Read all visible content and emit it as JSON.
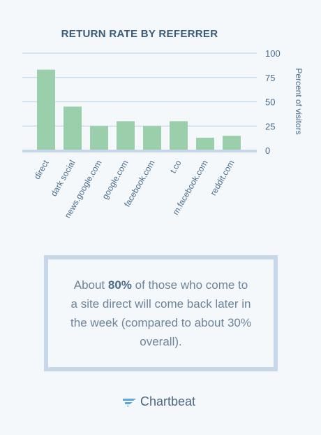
{
  "chart_data": {
    "type": "bar",
    "title": "RETURN RATE BY REFERRER",
    "ylabel": "Percent of visitors",
    "ylim": [
      0,
      100
    ],
    "yticks": [
      0,
      25,
      50,
      75,
      100
    ],
    "grid": true,
    "categories": [
      "direct",
      "dark social",
      "news.google.com",
      "google.com",
      "facebook.com",
      "t.co",
      "m.facebook.com",
      "reddit.com"
    ],
    "values": [
      83,
      45,
      25,
      30,
      25,
      30,
      13,
      15
    ],
    "bar_color": "#9bcfab",
    "grid_color": "#c5d7e8",
    "axis_color": "#c5d7e8"
  },
  "callout": {
    "text_before": "About ",
    "highlight": "80%",
    "text_after": " of those who come to a site direct will come back later in the week (compared to about 30% overall)."
  },
  "brand": {
    "name": "Chartbeat",
    "logo_icon": "chartbeat-logo-icon"
  }
}
